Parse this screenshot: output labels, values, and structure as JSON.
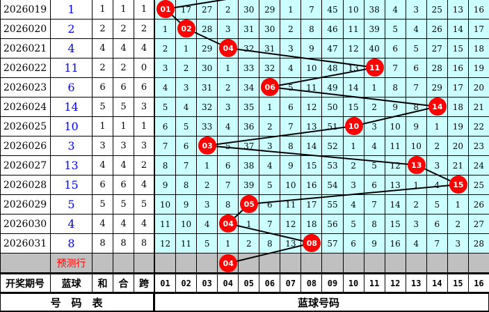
{
  "colors": {
    "cell_bg": "#ccffff",
    "ball": "#ff0000",
    "blue_text": "#0000ff",
    "predict_bg": "#c0c0c0",
    "predict_text": "#ff0000"
  },
  "rows": [
    {
      "period": "2026019",
      "blue": "1",
      "he": "1",
      "hz": "1",
      "kua": "1",
      "cells": [
        "01",
        "17",
        "27",
        "2",
        "30",
        "29",
        "1",
        "7",
        "45",
        "10",
        "38",
        "4",
        "3",
        "25",
        "13",
        "16"
      ],
      "hit": 0
    },
    {
      "period": "2026020",
      "blue": "2",
      "he": "2",
      "hz": "2",
      "kua": "2",
      "cells": [
        "1",
        "02",
        "28",
        "3",
        "31",
        "30",
        "2",
        "8",
        "46",
        "11",
        "39",
        "5",
        "4",
        "26",
        "14",
        "17"
      ],
      "hit": 1
    },
    {
      "period": "2026021",
      "blue": "4",
      "he": "4",
      "hz": "4",
      "kua": "4",
      "cells": [
        "2",
        "1",
        "29",
        "04",
        "32",
        "31",
        "3",
        "9",
        "47",
        "12",
        "40",
        "6",
        "5",
        "27",
        "15",
        "18"
      ],
      "hit": 3
    },
    {
      "period": "2026022",
      "blue": "11",
      "he": "2",
      "hz": "2",
      "kua": "0",
      "cells": [
        "3",
        "2",
        "30",
        "1",
        "33",
        "32",
        "4",
        "10",
        "48",
        "13",
        "11",
        "7",
        "6",
        "28",
        "16",
        "19"
      ],
      "hit": 10
    },
    {
      "period": "2026023",
      "blue": "6",
      "he": "6",
      "hz": "6",
      "kua": "6",
      "cells": [
        "4",
        "3",
        "31",
        "2",
        "34",
        "06",
        "5",
        "11",
        "49",
        "14",
        "1",
        "8",
        "7",
        "29",
        "17",
        "20"
      ],
      "hit": 5
    },
    {
      "period": "2026024",
      "blue": "14",
      "he": "5",
      "hz": "5",
      "kua": "3",
      "cells": [
        "5",
        "4",
        "32",
        "3",
        "35",
        "1",
        "6",
        "12",
        "50",
        "15",
        "2",
        "9",
        "8",
        "14",
        "18",
        "21"
      ],
      "hit": 13
    },
    {
      "period": "2026025",
      "blue": "10",
      "he": "1",
      "hz": "1",
      "kua": "1",
      "cells": [
        "6",
        "5",
        "33",
        "4",
        "36",
        "2",
        "7",
        "13",
        "51",
        "10",
        "3",
        "10",
        "9",
        "1",
        "19",
        "22"
      ],
      "hit": 9
    },
    {
      "period": "2026026",
      "blue": "3",
      "he": "3",
      "hz": "3",
      "kua": "3",
      "cells": [
        "7",
        "6",
        "03",
        "5",
        "37",
        "3",
        "8",
        "14",
        "52",
        "1",
        "4",
        "11",
        "10",
        "2",
        "20",
        "23"
      ],
      "hit": 2
    },
    {
      "period": "2026027",
      "blue": "13",
      "he": "4",
      "hz": "4",
      "kua": "2",
      "cells": [
        "8",
        "7",
        "1",
        "6",
        "38",
        "4",
        "9",
        "15",
        "53",
        "2",
        "5",
        "12",
        "13",
        "3",
        "21",
        "24"
      ],
      "hit": 12
    },
    {
      "period": "2026028",
      "blue": "15",
      "he": "6",
      "hz": "6",
      "kua": "4",
      "cells": [
        "9",
        "8",
        "2",
        "7",
        "39",
        "5",
        "10",
        "16",
        "54",
        "3",
        "6",
        "13",
        "1",
        "4",
        "15",
        "25"
      ],
      "hit": 14
    },
    {
      "period": "2026029",
      "blue": "5",
      "he": "5",
      "hz": "5",
      "kua": "5",
      "cells": [
        "10",
        "9",
        "3",
        "8",
        "05",
        "6",
        "11",
        "17",
        "55",
        "4",
        "7",
        "14",
        "2",
        "5",
        "1",
        "26"
      ],
      "hit": 4
    },
    {
      "period": "2026030",
      "blue": "4",
      "he": "4",
      "hz": "4",
      "kua": "4",
      "cells": [
        "11",
        "10",
        "4",
        "04",
        "1",
        "7",
        "12",
        "18",
        "56",
        "5",
        "8",
        "15",
        "3",
        "6",
        "2",
        "27"
      ],
      "hit": 3
    },
    {
      "period": "2026031",
      "blue": "8",
      "he": "8",
      "hz": "8",
      "kua": "8",
      "cells": [
        "12",
        "11",
        "5",
        "1",
        "2",
        "8",
        "13",
        "08",
        "57",
        "6",
        "9",
        "16",
        "4",
        "7",
        "3",
        "28"
      ],
      "hit": 7
    }
  ],
  "predict": {
    "label": "预测行",
    "ball": "04",
    "hit": 3
  },
  "header": {
    "period": "开奖期号",
    "blue": "蓝球",
    "he": "和",
    "hz": "合",
    "kua": "跨",
    "numbers": [
      "01",
      "02",
      "03",
      "04",
      "05",
      "06",
      "07",
      "08",
      "09",
      "10",
      "11",
      "12",
      "13",
      "14",
      "15",
      "16"
    ]
  },
  "footer": {
    "left": "号　码　表",
    "right": "蓝球号码"
  }
}
